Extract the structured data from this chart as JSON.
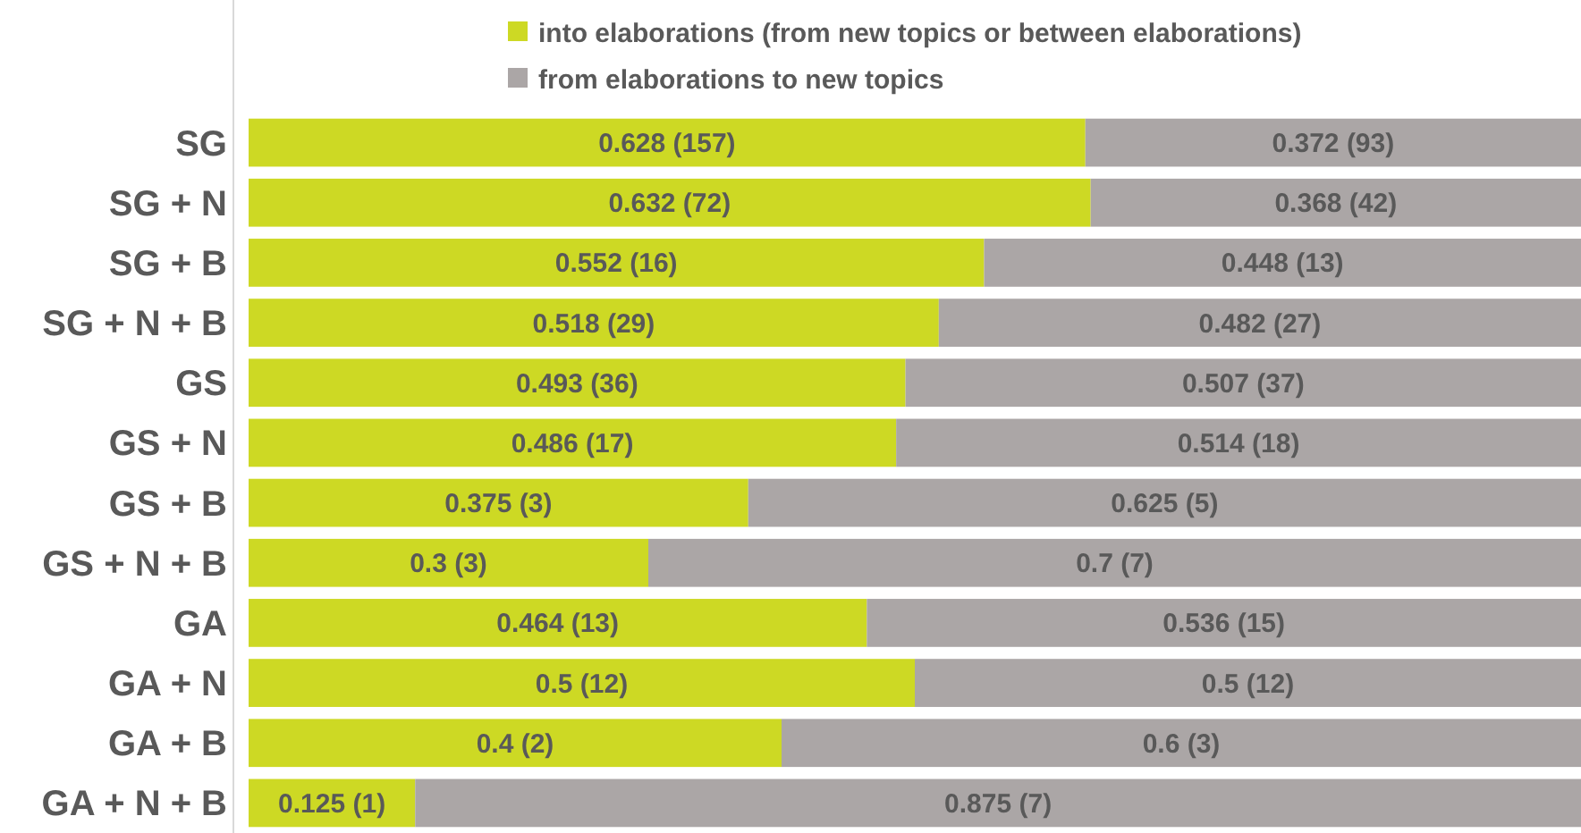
{
  "chart_data": {
    "type": "bar",
    "orientation": "horizontal",
    "stacked": true,
    "legend": "top",
    "categories": [
      "SG",
      "SG + N",
      "SG + B",
      "SG + N + B",
      "GS",
      "GS + N",
      "GS + B",
      "GS + N + B",
      "GA",
      "GA + N",
      "GA + B",
      "GA + N + B"
    ],
    "series": [
      {
        "name": "into elaborations (from new topics or between elaborations)",
        "color": "#cdd924",
        "values": [
          0.628,
          0.632,
          0.552,
          0.518,
          0.493,
          0.486,
          0.375,
          0.3,
          0.464,
          0.5,
          0.4,
          0.125
        ],
        "value_labels": [
          "0.628 (157)",
          "0.632 (72)",
          "0.552 (16)",
          "0.518 (29)",
          "0.493 (36)",
          "0.486 (17)",
          "0.375 (3)",
          "0.3 (3)",
          "0.464 (13)",
          "0.5 (12)",
          "0.4 (2)",
          "0.125 (1)"
        ]
      },
      {
        "name": "from elaborations to new topics",
        "color": "#aba6a6",
        "values": [
          0.372,
          0.368,
          0.448,
          0.482,
          0.507,
          0.514,
          0.625,
          0.7,
          0.536,
          0.5,
          0.6,
          0.875
        ],
        "value_labels": [
          "0.372 (93)",
          "0.368 (42)",
          "0.448 (13)",
          "0.482 (27)",
          "0.507 (37)",
          "0.514 (18)",
          "0.625 (5)",
          "0.7 (7)",
          "0.536 (15)",
          "0.5 (12)",
          "0.6 (3)",
          "0.875 (7)"
        ]
      }
    ]
  }
}
